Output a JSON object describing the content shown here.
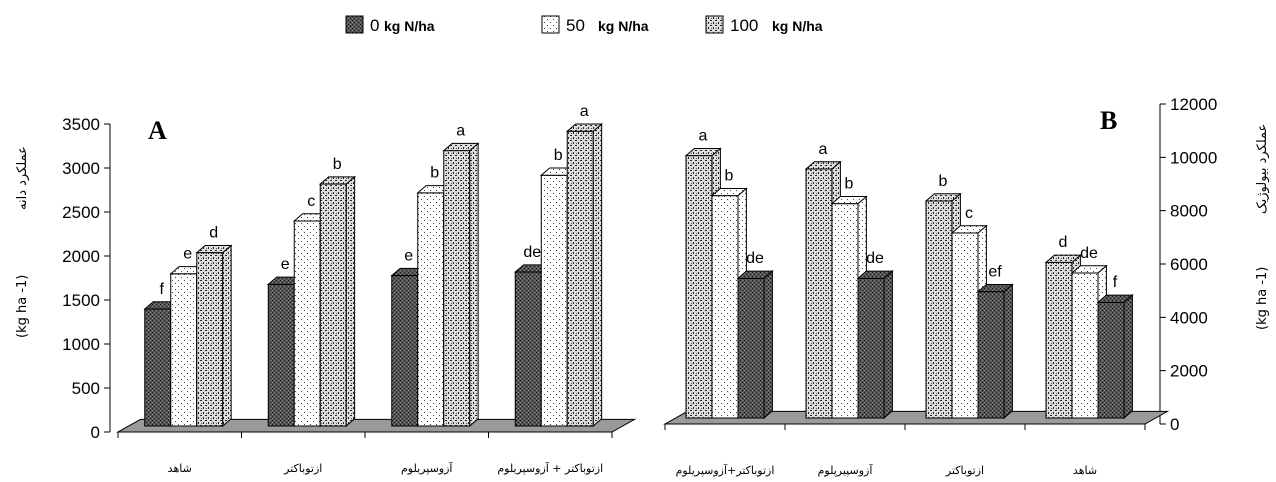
{
  "legend": [
    {
      "value": "0",
      "unit": "kg N/ha"
    },
    {
      "value": "50",
      "unit": "kg N/ha"
    },
    {
      "value": "100",
      "unit": "kg N/ha"
    }
  ],
  "colors": {
    "n0": "#4a4a4a",
    "n50": "#ffffff",
    "n100": "#c8c8c8",
    "floor": "#999999"
  },
  "chart_data": [
    {
      "type": "bar",
      "panel": "A",
      "ylabel_fa": "عملکرد دانه",
      "ylabel_unit": "(kg ha -1)",
      "ylim": [
        0,
        3500
      ],
      "yticks": [
        0,
        500,
        1000,
        1500,
        2000,
        2500,
        3000,
        3500
      ],
      "categories": [
        "شاهد",
        "ازتوباکتر",
        "آزوسپریلوم",
        "ازتوباکتر + آزوسپریلوم"
      ],
      "series": [
        {
          "name": "0 kg N/ha",
          "values": [
            1500,
            1780,
            1880,
            1920
          ],
          "letters": [
            "f",
            "e",
            "e",
            "de"
          ]
        },
        {
          "name": "50 kg N/ha",
          "values": [
            1900,
            2500,
            2820,
            3020
          ],
          "letters": [
            "e",
            "c",
            "b",
            "b"
          ]
        },
        {
          "name": "100 kg N/ha",
          "values": [
            2140,
            2920,
            3300,
            3520
          ],
          "letters": [
            "d",
            "b",
            "a",
            "a"
          ]
        }
      ]
    },
    {
      "type": "bar",
      "panel": "B",
      "ylabel_fa": "عملکرد بیولوژیک",
      "ylabel_unit": "(kg ha -1)",
      "ylim": [
        0,
        12000
      ],
      "yticks": [
        0,
        2000,
        4000,
        6000,
        8000,
        10000,
        12000
      ],
      "categories": [
        "ازتوباکتر+آزوسپریلوم",
        "آزوسپیرپلوم",
        "ازتوباکتر",
        "شاهد"
      ],
      "series": [
        {
          "name": "100 kg N/ha",
          "values": [
            10400,
            9900,
            8700,
            6400
          ],
          "letters": [
            "a",
            "a",
            "b",
            "d"
          ]
        },
        {
          "name": "50 kg N/ha",
          "values": [
            8900,
            8600,
            7500,
            6000
          ],
          "letters": [
            "b",
            "b",
            "c",
            "de"
          ]
        },
        {
          "name": "0 kg N/ha",
          "values": [
            5800,
            5800,
            5300,
            4900
          ],
          "letters": [
            "de",
            "de",
            "ef",
            "f"
          ]
        }
      ]
    }
  ]
}
